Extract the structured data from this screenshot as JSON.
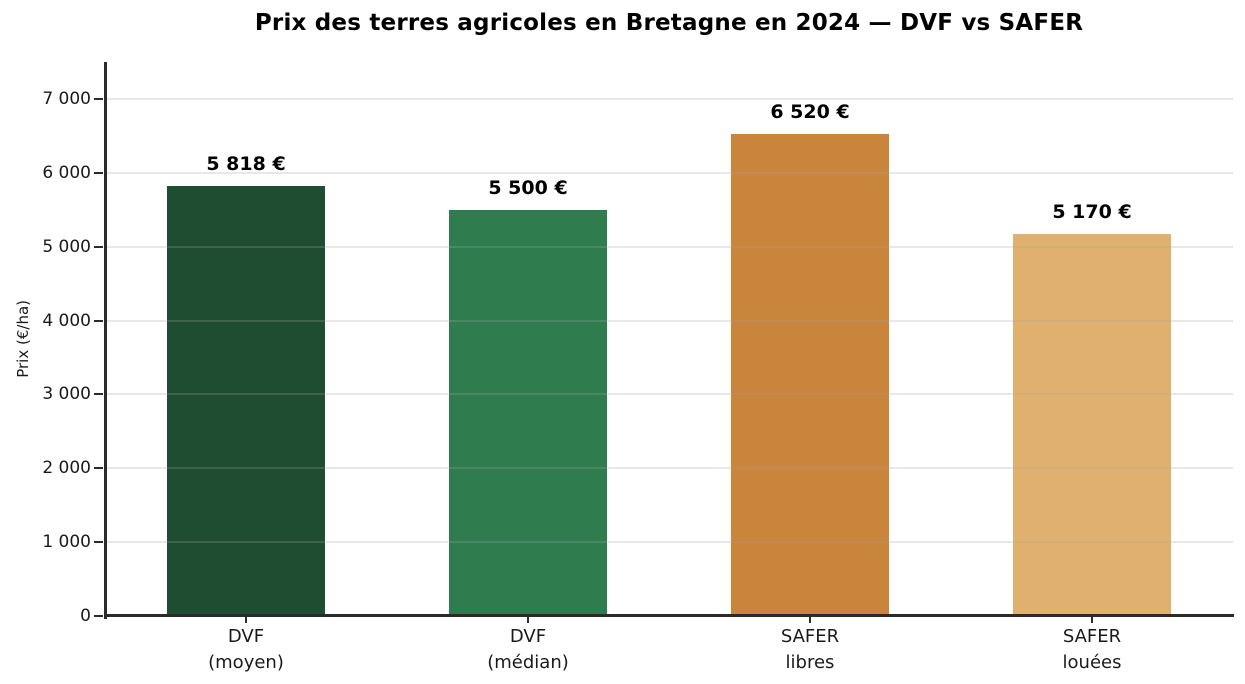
{
  "chart_data": {
    "type": "bar",
    "title": "Prix des terres agricoles en Bretagne en 2024 — DVF vs SAFER",
    "categories": [
      "DVF\n(moyen)",
      "DVF\n(médian)",
      "SAFER\nlibres",
      "SAFER\nlouées"
    ],
    "values": [
      5818,
      5500,
      6520,
      5170
    ],
    "value_labels": [
      "5 818 €",
      "5 500 €",
      "6 520 €",
      "5 170 €"
    ],
    "bar_colors": [
      "#1e4d32",
      "#2f7c4f",
      "#c9853c",
      "#dfb06e"
    ],
    "xlabel": "",
    "ylabel": "Prix (€/ha)",
    "ylim": [
      0,
      7500
    ],
    "yticks": [
      0,
      1000,
      2000,
      3000,
      4000,
      5000,
      6000,
      7000
    ],
    "ytick_labels": [
      "0",
      "1 000",
      "2 000",
      "3 000",
      "4 000",
      "5 000",
      "6 000",
      "7 000"
    ],
    "grid": "horizontal, light gray, drawn over bars",
    "legend": "none"
  }
}
